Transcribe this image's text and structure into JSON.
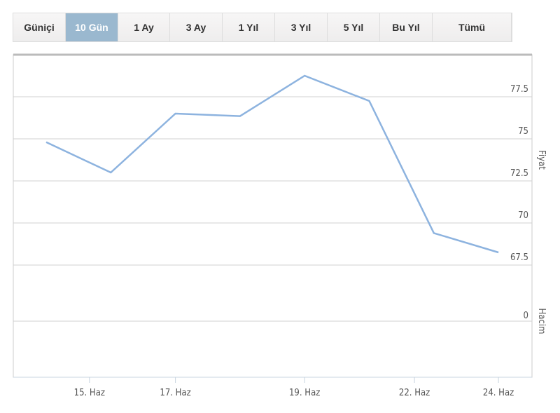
{
  "tabs": [
    {
      "label": "Güniçi",
      "active": false
    },
    {
      "label": "10 Gün",
      "active": true
    },
    {
      "label": "1 Ay",
      "active": false
    },
    {
      "label": "3 Ay",
      "active": false
    },
    {
      "label": "1 Yıl",
      "active": false
    },
    {
      "label": "3 Yıl",
      "active": false
    },
    {
      "label": "5 Yıl",
      "active": false
    },
    {
      "label": "Bu Yıl",
      "active": false
    },
    {
      "label": "Tümü",
      "active": false
    }
  ],
  "colors": {
    "line": "#8db3df",
    "active_tab": "#9ab8cf",
    "grid": "#d0d0d0"
  },
  "chart_data": {
    "type": "line",
    "x_index": [
      0,
      1,
      2,
      3,
      4,
      5,
      6,
      7
    ],
    "values": [
      74.8,
      73.0,
      76.5,
      76.35,
      78.75,
      77.25,
      69.4,
      68.25
    ],
    "x_ticks": [
      {
        "label": "15. Haz",
        "at": 0.67
      },
      {
        "label": "17. Haz",
        "at": 2.0
      },
      {
        "label": "19. Haz",
        "at": 4.0
      },
      {
        "label": "22. Haz",
        "at": 5.7
      },
      {
        "label": "24. Haz",
        "at": 7.0
      }
    ],
    "price_axis": {
      "label": "Fiyat",
      "ticks": [
        "77.5",
        "75",
        "72.5",
        "70",
        "67.5"
      ],
      "tick_values": [
        77.5,
        75,
        72.5,
        70,
        67.5
      ]
    },
    "volume_axis": {
      "label": "Hacim",
      "ticks": [
        "0"
      ]
    },
    "grid": true
  }
}
